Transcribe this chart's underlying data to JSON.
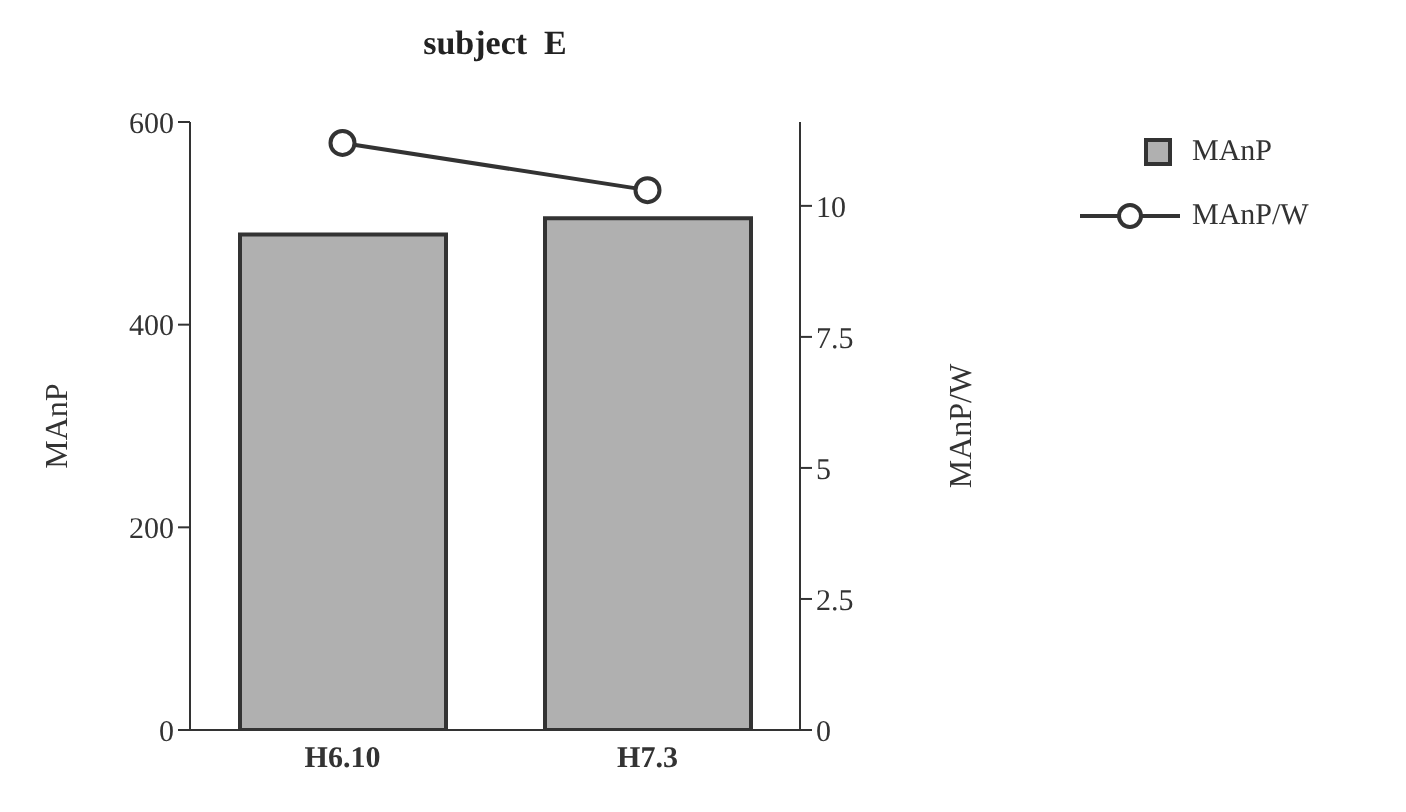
{
  "chart_data": {
    "type": "bar",
    "title": "subject  E",
    "categories": [
      "H6.10",
      "H7.3"
    ],
    "ylabel": "MAnP",
    "y2label": "MAnP/W",
    "series": [
      {
        "name": "MAnP",
        "color": "#b0b0b0",
        "values": [
          489,
          505
        ]
      },
      {
        "name": "MAnP/W",
        "type": "line",
        "axis": "y2",
        "color": "#333333",
        "marker": "circle",
        "values": [
          11.2,
          10.3
        ]
      }
    ],
    "ylim": [
      0,
      600
    ],
    "yticks": [
      0,
      200,
      400,
      600
    ],
    "y2lim": [
      0,
      11.6
    ],
    "y2ticks": [
      0,
      2.5,
      5,
      7.5,
      10
    ],
    "grid": false,
    "legend": "top right"
  }
}
